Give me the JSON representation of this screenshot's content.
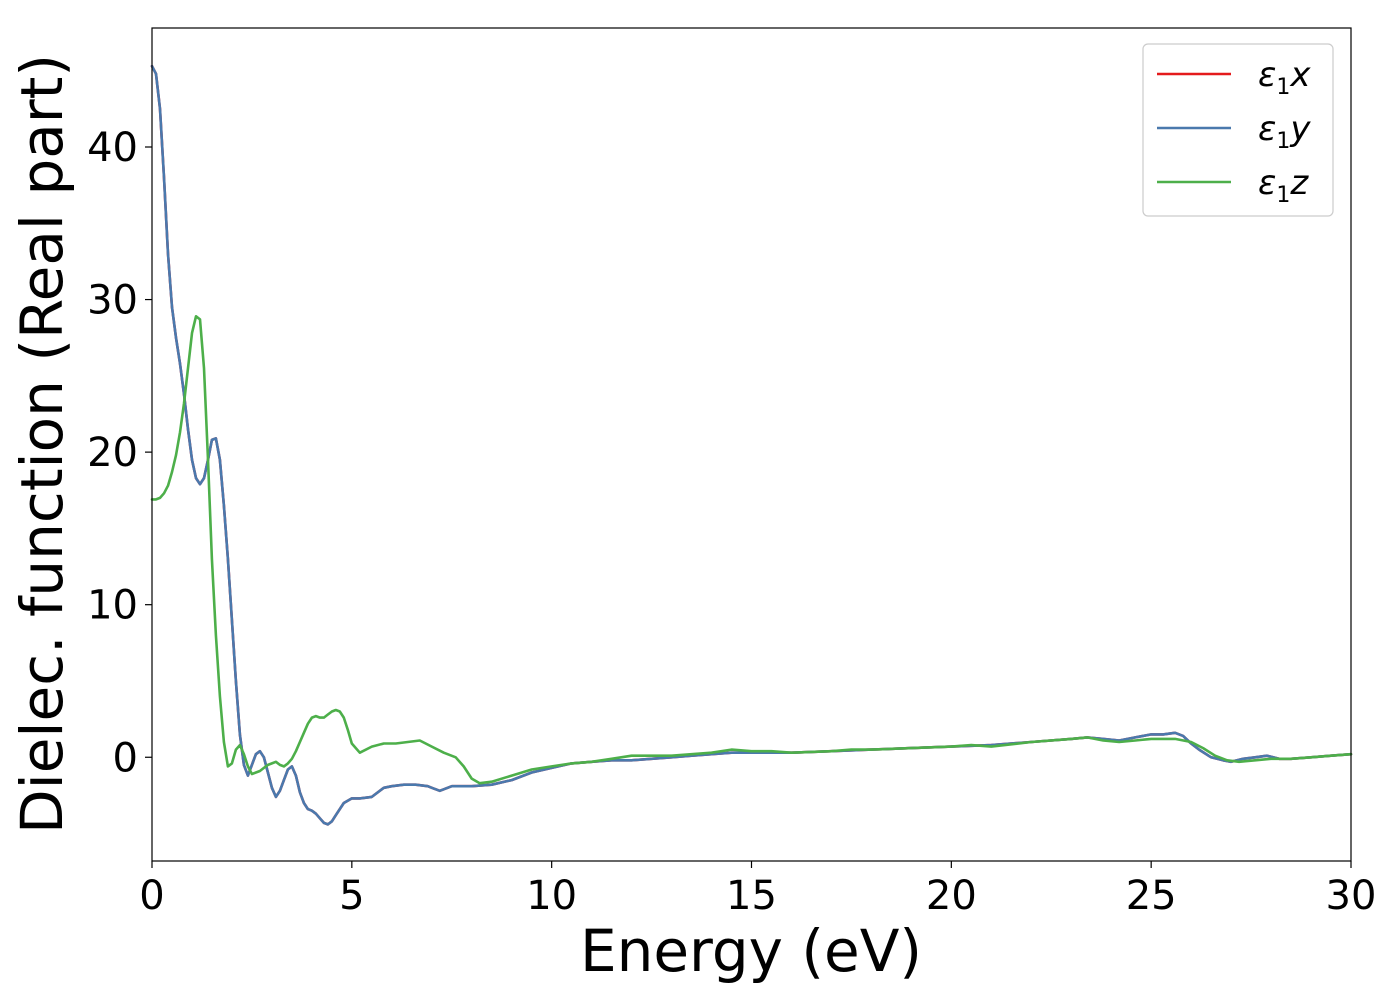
{
  "chart_data": {
    "type": "line",
    "xlabel": "Energy (eV)",
    "ylabel": "Dielec. function (Real part)",
    "xlim": [
      0,
      30
    ],
    "ylim": [
      -6.8,
      47.8
    ],
    "xticks": [
      0,
      5,
      10,
      15,
      20,
      25,
      30
    ],
    "yticks": [
      0,
      10,
      20,
      30,
      40
    ],
    "grid": false,
    "legend_position": "top-right",
    "series": [
      {
        "name": "ε1x",
        "symbol": "ε",
        "subscript": "1",
        "suffix": "x",
        "color": "#e41a1c",
        "x": [
          0,
          0.1,
          0.2,
          0.3,
          0.4,
          0.5,
          0.6,
          0.7,
          0.8,
          0.9,
          1.0,
          1.1,
          1.2,
          1.3,
          1.4,
          1.5,
          1.6,
          1.7,
          1.8,
          1.9,
          2.0,
          2.1,
          2.2,
          2.3,
          2.4,
          2.5,
          2.6,
          2.7,
          2.8,
          2.9,
          3.0,
          3.1,
          3.2,
          3.3,
          3.4,
          3.5,
          3.6,
          3.7,
          3.8,
          3.9,
          4.0,
          4.1,
          4.2,
          4.3,
          4.4,
          4.5,
          4.6,
          4.8,
          5.0,
          5.2,
          5.5,
          5.8,
          6.0,
          6.3,
          6.6,
          6.9,
          7.0,
          7.2,
          7.5,
          7.8,
          8.0,
          8.5,
          9.0,
          9.5,
          10.0,
          10.5,
          11.0,
          11.5,
          12.0,
          12.5,
          13.0,
          13.5,
          14.0,
          14.5,
          15.0,
          15.5,
          16.0,
          17.0,
          18.0,
          19.0,
          20.0,
          21.0,
          22.0,
          23.0,
          23.4,
          23.8,
          24.2,
          24.6,
          25.0,
          25.3,
          25.6,
          25.8,
          26.0,
          26.2,
          26.5,
          26.8,
          27.0,
          27.3,
          27.6,
          27.9,
          28.2,
          28.5,
          29.0,
          29.5,
          30.0
        ],
        "y": [
          45.3,
          44.8,
          42.5,
          38.0,
          33.0,
          29.5,
          27.5,
          25.8,
          23.8,
          21.5,
          19.5,
          18.3,
          17.9,
          18.3,
          19.5,
          20.8,
          20.9,
          19.5,
          16.5,
          13.0,
          9.0,
          5.0,
          1.5,
          -0.5,
          -1.2,
          -0.5,
          0.2,
          0.4,
          0.0,
          -1.0,
          -2.0,
          -2.6,
          -2.2,
          -1.5,
          -0.8,
          -0.6,
          -1.2,
          -2.3,
          -3.0,
          -3.4,
          -3.5,
          -3.7,
          -4.0,
          -4.3,
          -4.4,
          -4.2,
          -3.8,
          -3.0,
          -2.7,
          -2.7,
          -2.6,
          -2.0,
          -1.9,
          -1.8,
          -1.8,
          -1.9,
          -2.0,
          -2.2,
          -1.9,
          -1.9,
          -1.9,
          -1.8,
          -1.5,
          -1.0,
          -0.7,
          -0.4,
          -0.3,
          -0.2,
          -0.2,
          -0.1,
          0.0,
          0.1,
          0.2,
          0.3,
          0.3,
          0.3,
          0.3,
          0.4,
          0.5,
          0.6,
          0.7,
          0.8,
          1.0,
          1.2,
          1.3,
          1.2,
          1.1,
          1.3,
          1.5,
          1.5,
          1.6,
          1.4,
          0.9,
          0.5,
          0.0,
          -0.2,
          -0.3,
          -0.1,
          0.0,
          0.1,
          -0.1,
          -0.1,
          0.0,
          0.1,
          0.2
        ]
      },
      {
        "name": "ε1y",
        "symbol": "ε",
        "subscript": "1",
        "suffix": "y",
        "color": "#4a79ad",
        "x": [
          0,
          0.1,
          0.2,
          0.3,
          0.4,
          0.5,
          0.6,
          0.7,
          0.8,
          0.9,
          1.0,
          1.1,
          1.2,
          1.3,
          1.4,
          1.5,
          1.6,
          1.7,
          1.8,
          1.9,
          2.0,
          2.1,
          2.2,
          2.3,
          2.4,
          2.5,
          2.6,
          2.7,
          2.8,
          2.9,
          3.0,
          3.1,
          3.2,
          3.3,
          3.4,
          3.5,
          3.6,
          3.7,
          3.8,
          3.9,
          4.0,
          4.1,
          4.2,
          4.3,
          4.4,
          4.5,
          4.6,
          4.8,
          5.0,
          5.2,
          5.5,
          5.8,
          6.0,
          6.3,
          6.6,
          6.9,
          7.0,
          7.2,
          7.5,
          7.8,
          8.0,
          8.5,
          9.0,
          9.5,
          10.0,
          10.5,
          11.0,
          11.5,
          12.0,
          12.5,
          13.0,
          13.5,
          14.0,
          14.5,
          15.0,
          15.5,
          16.0,
          17.0,
          18.0,
          19.0,
          20.0,
          21.0,
          22.0,
          23.0,
          23.4,
          23.8,
          24.2,
          24.6,
          25.0,
          25.3,
          25.6,
          25.8,
          26.0,
          26.2,
          26.5,
          26.8,
          27.0,
          27.3,
          27.6,
          27.9,
          28.2,
          28.5,
          29.0,
          29.5,
          30.0
        ],
        "y": [
          45.3,
          44.8,
          42.5,
          38.0,
          33.0,
          29.5,
          27.5,
          25.8,
          23.8,
          21.5,
          19.5,
          18.3,
          17.9,
          18.3,
          19.5,
          20.8,
          20.9,
          19.5,
          16.5,
          13.0,
          9.0,
          5.0,
          1.5,
          -0.5,
          -1.2,
          -0.5,
          0.2,
          0.4,
          0.0,
          -1.0,
          -2.0,
          -2.6,
          -2.2,
          -1.5,
          -0.8,
          -0.6,
          -1.2,
          -2.3,
          -3.0,
          -3.4,
          -3.5,
          -3.7,
          -4.0,
          -4.3,
          -4.4,
          -4.2,
          -3.8,
          -3.0,
          -2.7,
          -2.7,
          -2.6,
          -2.0,
          -1.9,
          -1.8,
          -1.8,
          -1.9,
          -2.0,
          -2.2,
          -1.9,
          -1.9,
          -1.9,
          -1.8,
          -1.5,
          -1.0,
          -0.7,
          -0.4,
          -0.3,
          -0.2,
          -0.2,
          -0.1,
          0.0,
          0.1,
          0.2,
          0.3,
          0.3,
          0.3,
          0.3,
          0.4,
          0.5,
          0.6,
          0.7,
          0.8,
          1.0,
          1.2,
          1.3,
          1.2,
          1.1,
          1.3,
          1.5,
          1.5,
          1.6,
          1.4,
          0.9,
          0.5,
          0.0,
          -0.2,
          -0.3,
          -0.1,
          0.0,
          0.1,
          -0.1,
          -0.1,
          0.0,
          0.1,
          0.2
        ]
      },
      {
        "name": "ε1z",
        "symbol": "ε",
        "subscript": "1",
        "suffix": "z",
        "color": "#4daf4a",
        "x": [
          0,
          0.1,
          0.2,
          0.3,
          0.4,
          0.5,
          0.6,
          0.7,
          0.8,
          0.9,
          1.0,
          1.1,
          1.2,
          1.3,
          1.4,
          1.5,
          1.6,
          1.7,
          1.8,
          1.9,
          2.0,
          2.1,
          2.2,
          2.3,
          2.4,
          2.5,
          2.6,
          2.7,
          2.8,
          2.9,
          3.0,
          3.1,
          3.2,
          3.3,
          3.4,
          3.5,
          3.6,
          3.7,
          3.8,
          3.9,
          4.0,
          4.1,
          4.2,
          4.3,
          4.4,
          4.5,
          4.6,
          4.7,
          4.8,
          4.9,
          5.0,
          5.2,
          5.5,
          5.8,
          6.1,
          6.4,
          6.7,
          7.0,
          7.3,
          7.6,
          7.8,
          8.0,
          8.2,
          8.5,
          9.0,
          9.5,
          10.0,
          10.5,
          11.0,
          11.5,
          12.0,
          12.5,
          13.0,
          13.5,
          14.0,
          14.5,
          15.0,
          15.5,
          16.0,
          17.0,
          17.5,
          18.0,
          19.0,
          20.0,
          20.5,
          21.0,
          22.0,
          23.0,
          23.4,
          23.8,
          24.2,
          24.6,
          25.0,
          25.3,
          25.6,
          26.0,
          26.3,
          26.6,
          26.9,
          27.2,
          27.6,
          28.0,
          28.5,
          29.0,
          29.5,
          30.0
        ],
        "y": [
          16.9,
          16.9,
          17.0,
          17.3,
          17.8,
          18.7,
          19.8,
          21.3,
          23.2,
          25.5,
          27.8,
          28.9,
          28.7,
          25.5,
          19.5,
          13.0,
          8.0,
          4.0,
          1.0,
          -0.6,
          -0.4,
          0.5,
          0.8,
          0.2,
          -0.6,
          -1.1,
          -1.0,
          -0.9,
          -0.7,
          -0.5,
          -0.4,
          -0.3,
          -0.5,
          -0.6,
          -0.4,
          -0.1,
          0.4,
          1.0,
          1.6,
          2.2,
          2.6,
          2.7,
          2.6,
          2.6,
          2.8,
          3.0,
          3.1,
          3.0,
          2.6,
          1.8,
          0.9,
          0.3,
          0.7,
          0.9,
          0.9,
          1.0,
          1.1,
          0.7,
          0.3,
          0.0,
          -0.6,
          -1.4,
          -1.7,
          -1.6,
          -1.2,
          -0.8,
          -0.6,
          -0.4,
          -0.3,
          -0.1,
          0.1,
          0.1,
          0.1,
          0.2,
          0.3,
          0.5,
          0.4,
          0.4,
          0.3,
          0.4,
          0.5,
          0.5,
          0.6,
          0.7,
          0.8,
          0.7,
          1.0,
          1.2,
          1.3,
          1.1,
          1.0,
          1.1,
          1.2,
          1.2,
          1.2,
          1.0,
          0.6,
          0.1,
          -0.2,
          -0.3,
          -0.2,
          -0.1,
          -0.1,
          0.0,
          0.1,
          0.2
        ]
      }
    ]
  }
}
